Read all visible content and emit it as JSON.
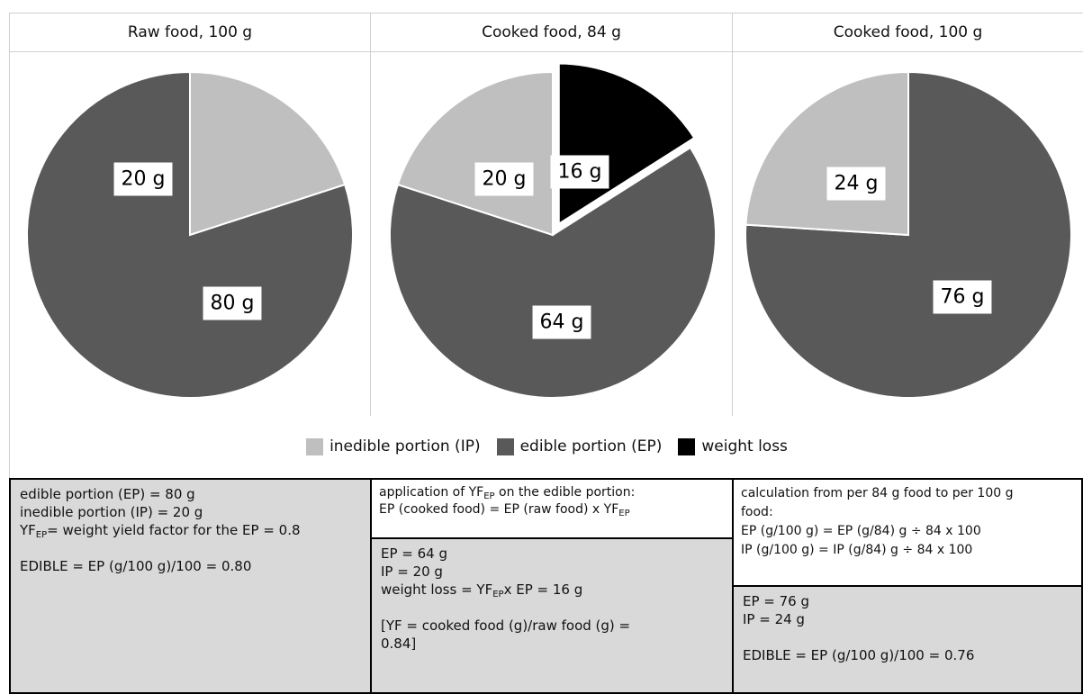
{
  "chart_data": [
    {
      "type": "pie",
      "title": "Raw food, 100 g",
      "slices": [
        {
          "name": "inedible portion (IP)",
          "value": 20,
          "label": "20 g",
          "color": "#bfbfbf"
        },
        {
          "name": "edible portion (EP)",
          "value": 80,
          "label": "80 g",
          "color": "#595959"
        }
      ]
    },
    {
      "type": "pie",
      "title": "Cooked food, 84 g",
      "slices": [
        {
          "name": "weight loss",
          "value": 16,
          "label": "16 g",
          "color": "#000000",
          "exploded": true
        },
        {
          "name": "edible portion (EP)",
          "value": 64,
          "label": "64 g",
          "color": "#595959"
        },
        {
          "name": "inedible portion (IP)",
          "value": 20,
          "label": "20 g",
          "color": "#bfbfbf"
        }
      ]
    },
    {
      "type": "pie",
      "title": "Cooked food, 100 g",
      "slices": [
        {
          "name": "edible portion (EP)",
          "value": 76,
          "label": "76 g",
          "color": "#595959"
        },
        {
          "name": "inedible portion (IP)",
          "value": 24,
          "label": "24 g",
          "color": "#bfbfbf"
        }
      ]
    }
  ],
  "legend": [
    {
      "label": "inedible portion (IP)",
      "color": "#bfbfbf"
    },
    {
      "label": "edible portion (EP)",
      "color": "#595959"
    },
    {
      "label": "weight loss",
      "color": "#000000"
    }
  ],
  "boxes": {
    "raw": {
      "line1": "edible portion (EP) = 80 g",
      "line2": "inedible portion (IP) = 20 g",
      "yf_a": "YF",
      "yf_sub": "EP",
      "yf_b": "= weight yield factor for the EP = 0.8",
      "line4": "EDIBLE = EP (g/100 g)/100 = 0.80"
    },
    "cooked84_top": {
      "line1": "application of YF",
      "line1_sub": "EP",
      "line1_b": " on the edible portion:",
      "line2_a": "EP (cooked food) = EP (raw food) x YF",
      "line2_sub": "EP"
    },
    "cooked84_bottom": {
      "line1": "EP = 64 g",
      "line2": "IP = 20 g",
      "line3_a": "weight loss = YF",
      "line3_sub": "EP",
      "line3_b": "x EP = 16 g",
      "line4": "[YF = cooked food (g)/raw food (g) =",
      "line5": "0.84]"
    },
    "cooked100_top": {
      "line1": "calculation from per 84 g food to per 100 g",
      "line2": "food:",
      "line3": "EP (g/100 g) = EP (g/84) g ÷ 84 x 100",
      "line4": "IP (g/100 g) = IP (g/84) g ÷ 84 x 100"
    },
    "cooked100_bottom": {
      "line1": "EP = 76 g",
      "line2": "IP = 24 g",
      "line3": "EDIBLE = EP (g/100 g)/100 = 0.76"
    }
  }
}
